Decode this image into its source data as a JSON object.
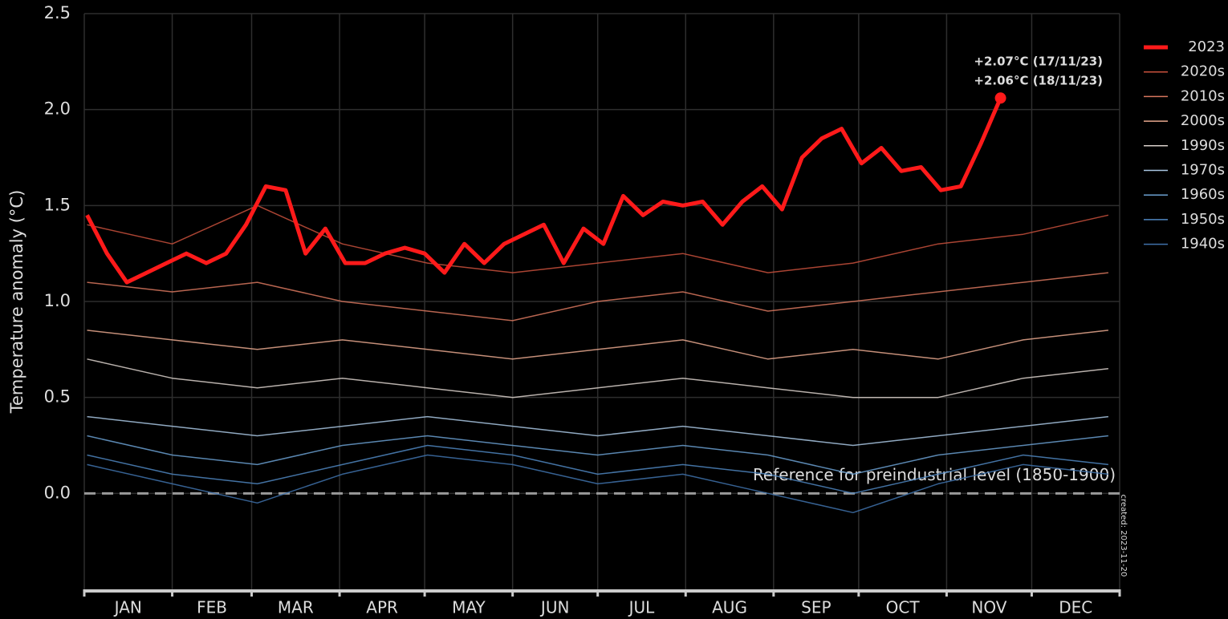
{
  "chart_data": {
    "type": "line",
    "y_label": "Temperature anomaly (°C)",
    "ylim": [
      -0.5,
      2.5
    ],
    "yticks": [
      {
        "value": 0,
        "label": "0.0"
      },
      0.5,
      {
        "value": 1,
        "label": "1.0"
      },
      1.5,
      {
        "value": 2,
        "label": "2.0"
      },
      2.5
    ],
    "xlim": [
      0,
      365
    ],
    "xticks": [
      0,
      31,
      59,
      90,
      120,
      151,
      181,
      212,
      243,
      273,
      304,
      334,
      365
    ],
    "categories": [
      "JAN",
      "FEB",
      "MAR",
      "APR",
      "MAY",
      "JUN",
      "JUL",
      "AUG",
      "SEP",
      "OCT",
      "NOV",
      "DEC"
    ],
    "grid": true,
    "legend": "right",
    "reference": {
      "value": 0,
      "label": "Reference for preindustrial level (1850-1900)"
    },
    "annotations": [
      "+2.07°C (17/11/23)",
      "+2.06°C (18/11/23)"
    ],
    "credit": "created: 2023-11-20",
    "series": [
      {
        "name": "1940s",
        "color": "#3f72ab",
        "x": [
          1,
          31,
          61,
          91,
          121,
          151,
          181,
          211,
          241,
          271,
          301,
          331,
          361
        ],
        "values": [
          0.15,
          0.05,
          -0.05,
          0.1,
          0.2,
          0.15,
          0.05,
          0.1,
          0.0,
          -0.1,
          0.05,
          0.15,
          0.1
        ]
      },
      {
        "name": "1950s",
        "color": "#4f86c0",
        "x": [
          1,
          31,
          61,
          91,
          121,
          151,
          181,
          211,
          241,
          271,
          301,
          331,
          361
        ],
        "values": [
          0.2,
          0.1,
          0.05,
          0.15,
          0.25,
          0.2,
          0.1,
          0.15,
          0.1,
          0.0,
          0.1,
          0.2,
          0.15
        ]
      },
      {
        "name": "1960s",
        "color": "#6a9fd0",
        "x": [
          1,
          31,
          61,
          91,
          121,
          151,
          181,
          211,
          241,
          271,
          301,
          331,
          361
        ],
        "values": [
          0.3,
          0.2,
          0.15,
          0.25,
          0.3,
          0.25,
          0.2,
          0.25,
          0.2,
          0.1,
          0.2,
          0.25,
          0.3
        ]
      },
      {
        "name": "1970s",
        "color": "#a9c7e3",
        "x": [
          1,
          31,
          61,
          91,
          121,
          151,
          181,
          211,
          241,
          271,
          301,
          331,
          361
        ],
        "values": [
          0.4,
          0.35,
          0.3,
          0.35,
          0.4,
          0.35,
          0.3,
          0.35,
          0.3,
          0.25,
          0.3,
          0.35,
          0.4
        ]
      },
      {
        "name": "1990s",
        "color": "#d9d0ca",
        "x": [
          1,
          31,
          61,
          91,
          121,
          151,
          181,
          211,
          241,
          271,
          301,
          331,
          361
        ],
        "values": [
          0.7,
          0.6,
          0.55,
          0.6,
          0.55,
          0.5,
          0.55,
          0.6,
          0.55,
          0.5,
          0.5,
          0.6,
          0.65
        ]
      },
      {
        "name": "2000s",
        "color": "#e8a88e",
        "x": [
          1,
          31,
          61,
          91,
          121,
          151,
          181,
          211,
          241,
          271,
          301,
          331,
          361
        ],
        "values": [
          0.85,
          0.8,
          0.75,
          0.8,
          0.75,
          0.7,
          0.75,
          0.8,
          0.7,
          0.75,
          0.7,
          0.8,
          0.85
        ]
      },
      {
        "name": "2010s",
        "color": "#d8775e",
        "x": [
          1,
          31,
          61,
          91,
          121,
          151,
          181,
          211,
          241,
          271,
          301,
          331,
          361
        ],
        "values": [
          1.1,
          1.05,
          1.1,
          1.0,
          0.95,
          0.9,
          1.0,
          1.05,
          0.95,
          1.0,
          1.05,
          1.1,
          1.15
        ]
      },
      {
        "name": "2020s",
        "color": "#c8503c",
        "x": [
          1,
          31,
          61,
          91,
          121,
          151,
          181,
          211,
          241,
          271,
          301,
          331,
          361
        ],
        "values": [
          1.4,
          1.3,
          1.5,
          1.3,
          1.2,
          1.15,
          1.2,
          1.25,
          1.15,
          1.2,
          1.3,
          1.35,
          1.45
        ]
      },
      {
        "name": "2023",
        "color": "#ff1a1a",
        "x": [
          1,
          8,
          15,
          22,
          29,
          36,
          43,
          50,
          57,
          64,
          71,
          78,
          85,
          92,
          99,
          106,
          113,
          120,
          127,
          134,
          141,
          148,
          155,
          162,
          169,
          176,
          183,
          190,
          197,
          204,
          211,
          218,
          225,
          232,
          239,
          246,
          253,
          260,
          267,
          274,
          281,
          288,
          295,
          302,
          309,
          316,
          323
        ],
        "values": [
          1.45,
          1.25,
          1.1,
          1.15,
          1.2,
          1.25,
          1.2,
          1.25,
          1.4,
          1.6,
          1.58,
          1.25,
          1.38,
          1.2,
          1.2,
          1.25,
          1.28,
          1.25,
          1.15,
          1.3,
          1.2,
          1.3,
          1.35,
          1.4,
          1.2,
          1.38,
          1.3,
          1.55,
          1.45,
          1.52,
          1.5,
          1.52,
          1.4,
          1.52,
          1.6,
          1.48,
          1.75,
          1.85,
          1.9,
          1.72,
          1.8,
          1.68,
          1.7,
          1.58,
          1.6,
          1.82,
          2.06
        ]
      }
    ]
  }
}
